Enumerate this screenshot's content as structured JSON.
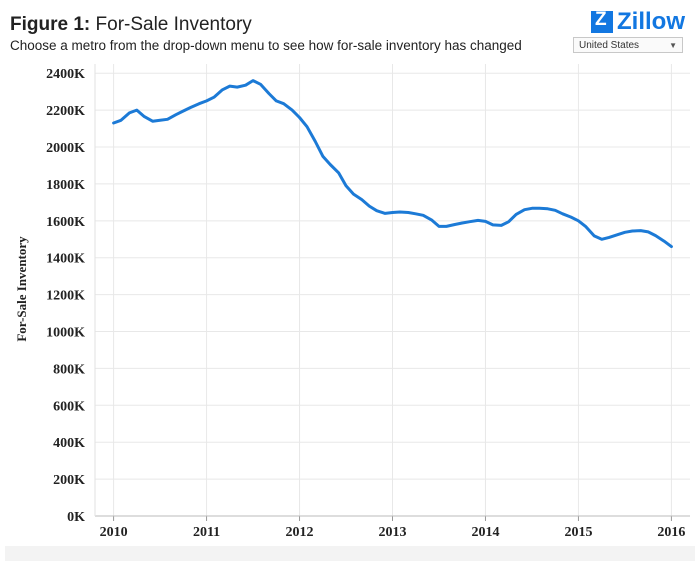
{
  "header": {
    "figure_label": "Figure 1:",
    "title": "For-Sale Inventory",
    "subtitle": "Choose a metro from the drop-down menu to see how for-sale inventory has changed"
  },
  "logo": {
    "text": "Zillow",
    "icon": "zillow-logo-icon"
  },
  "metro_select": {
    "value": "United States"
  },
  "colors": {
    "line": "#1c7ad6",
    "grid": "#e8e8e8",
    "brand": "#1277e1"
  },
  "chart_data": {
    "type": "line",
    "ylabel": "For-Sale Inventory",
    "xlabel": "",
    "ylim": [
      0,
      2450000
    ],
    "xlim": [
      2009.8,
      2016.2
    ],
    "yticks": [
      {
        "value": 0,
        "label": "0K"
      },
      {
        "value": 200000,
        "label": "200K"
      },
      {
        "value": 400000,
        "label": "400K"
      },
      {
        "value": 600000,
        "label": "600K"
      },
      {
        "value": 800000,
        "label": "800K"
      },
      {
        "value": 1000000,
        "label": "1000K"
      },
      {
        "value": 1200000,
        "label": "1200K"
      },
      {
        "value": 1400000,
        "label": "1400K"
      },
      {
        "value": 1600000,
        "label": "1600K"
      },
      {
        "value": 1800000,
        "label": "1800K"
      },
      {
        "value": 2000000,
        "label": "2000K"
      },
      {
        "value": 2200000,
        "label": "2200K"
      },
      {
        "value": 2400000,
        "label": "2400K"
      }
    ],
    "xticks": [
      {
        "value": 2010,
        "label": "2010"
      },
      {
        "value": 2011,
        "label": "2011"
      },
      {
        "value": 2012,
        "label": "2012"
      },
      {
        "value": 2013,
        "label": "2013"
      },
      {
        "value": 2014,
        "label": "2014"
      },
      {
        "value": 2015,
        "label": "2015"
      },
      {
        "value": 2016,
        "label": "2016"
      }
    ],
    "grid": true,
    "series": [
      {
        "x": [
          2010.0,
          2010.08,
          2010.17,
          2010.25,
          2010.33,
          2010.42,
          2010.5,
          2010.58,
          2010.67,
          2010.75,
          2010.83,
          2010.92,
          2011.0,
          2011.08,
          2011.17,
          2011.25,
          2011.33,
          2011.42,
          2011.5,
          2011.58,
          2011.67,
          2011.75,
          2011.83,
          2011.92,
          2012.0,
          2012.08,
          2012.17,
          2012.25,
          2012.33,
          2012.42,
          2012.5,
          2012.58,
          2012.67,
          2012.75,
          2012.83,
          2012.92,
          2013.0,
          2013.08,
          2013.17,
          2013.25,
          2013.33,
          2013.42,
          2013.5,
          2013.58,
          2013.67,
          2013.75,
          2013.83,
          2013.92,
          2014.0,
          2014.08,
          2014.17,
          2014.25,
          2014.33,
          2014.42,
          2014.5,
          2014.58,
          2014.67,
          2014.75,
          2014.83,
          2014.92,
          2015.0,
          2015.08,
          2015.17,
          2015.25,
          2015.33,
          2015.42,
          2015.5,
          2015.58,
          2015.67,
          2015.75,
          2015.83,
          2015.92,
          2016.0
        ],
        "values": [
          2130000,
          2145000,
          2185000,
          2200000,
          2165000,
          2140000,
          2145000,
          2150000,
          2175000,
          2195000,
          2215000,
          2235000,
          2250000,
          2270000,
          2310000,
          2330000,
          2325000,
          2335000,
          2360000,
          2340000,
          2290000,
          2250000,
          2235000,
          2200000,
          2160000,
          2110000,
          2030000,
          1950000,
          1905000,
          1860000,
          1790000,
          1745000,
          1715000,
          1680000,
          1655000,
          1640000,
          1645000,
          1648000,
          1645000,
          1638000,
          1630000,
          1605000,
          1570000,
          1570000,
          1580000,
          1588000,
          1595000,
          1602000,
          1597000,
          1578000,
          1575000,
          1595000,
          1635000,
          1660000,
          1668000,
          1668000,
          1665000,
          1657000,
          1638000,
          1620000,
          1600000,
          1568000,
          1518000,
          1500000,
          1510000,
          1525000,
          1538000,
          1545000,
          1547000,
          1540000,
          1520000,
          1490000,
          1460000
        ]
      }
    ]
  }
}
